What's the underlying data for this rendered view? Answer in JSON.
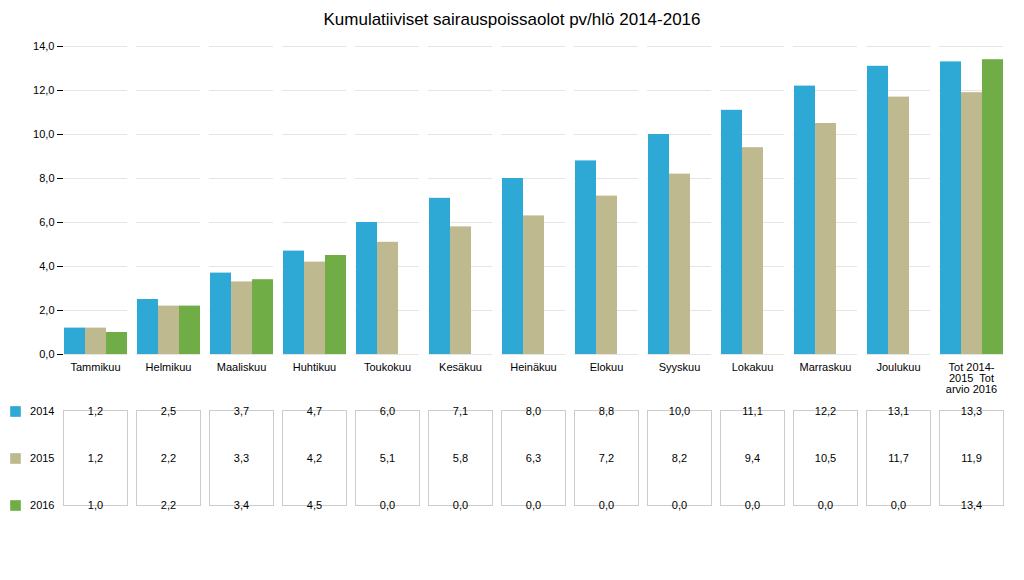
{
  "chart_data": {
    "type": "bar",
    "title": "Kumulatiiviset sairauspoissaolot pv/hlö 2014-2016",
    "categories": [
      "Tammikuu",
      "Helmikuu",
      "Maaliskuu",
      "Huhtikuu",
      "Toukokuu",
      "Kesäkuu",
      "Heinäkuu",
      "Elokuu",
      "Syyskuu",
      "Lokakuu",
      "Marraskuu",
      "Joulukuu",
      "Tot 2014-\n2015  Tot\narvio 2016"
    ],
    "series": [
      {
        "name": "2014",
        "color": "#2EA8D5",
        "values": [
          1.2,
          2.5,
          3.7,
          4.7,
          6.0,
          7.1,
          8.0,
          8.8,
          10.0,
          11.1,
          12.2,
          13.1,
          13.3
        ],
        "value_labels": [
          "1,2",
          "2,5",
          "3,7",
          "4,7",
          "6,0",
          "7,1",
          "8,0",
          "8,8",
          "10,0",
          "11,1",
          "12,2",
          "13,1",
          "13,3"
        ]
      },
      {
        "name": "2015",
        "color": "#BEB98E",
        "values": [
          1.2,
          2.2,
          3.3,
          4.2,
          5.1,
          5.8,
          6.3,
          7.2,
          8.2,
          9.4,
          10.5,
          11.7,
          11.9
        ],
        "value_labels": [
          "1,2",
          "2,2",
          "3,3",
          "4,2",
          "5,1",
          "5,8",
          "6,3",
          "7,2",
          "8,2",
          "9,4",
          "10,5",
          "11,7",
          "11,9"
        ]
      },
      {
        "name": "2016",
        "color": "#70AD47",
        "values": [
          1.0,
          2.2,
          3.4,
          4.5,
          0.0,
          0.0,
          0.0,
          0.0,
          0.0,
          0.0,
          0.0,
          0.0,
          13.4
        ],
        "value_labels": [
          "1,0",
          "2,2",
          "3,4",
          "4,5",
          "0,0",
          "0,0",
          "0,0",
          "0,0",
          "0,0",
          "0,0",
          "0,0",
          "0,0",
          "13,4"
        ]
      }
    ],
    "ylim": [
      0,
      14.0
    ],
    "yticks": [
      {
        "value": 0.0,
        "label": "0,0"
      },
      {
        "value": 2.0,
        "label": "2,0"
      },
      {
        "value": 4.0,
        "label": "4,0"
      },
      {
        "value": 6.0,
        "label": "6,0"
      },
      {
        "value": 8.0,
        "label": "8,0"
      },
      {
        "value": 10.0,
        "label": "10,0"
      },
      {
        "value": 12.0,
        "label": "12,0"
      },
      {
        "value": 14.0,
        "label": "14,0"
      }
    ],
    "grid": true,
    "legend": "bottom",
    "data_labels": true
  }
}
